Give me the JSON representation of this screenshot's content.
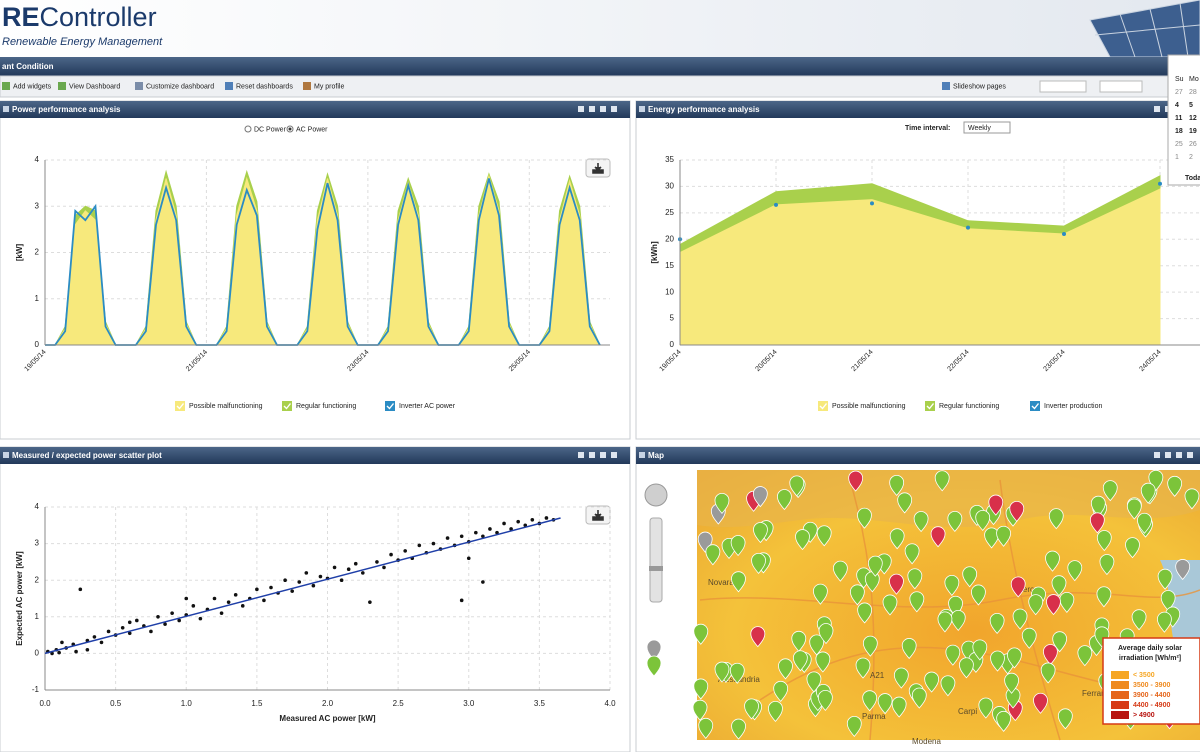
{
  "header": {
    "logo_bold": "RE",
    "logo_rest": "Controller",
    "tagline": "Renewable Energy Management"
  },
  "nav": {
    "title": "ant Condition"
  },
  "toolbar": {
    "items": [
      "Add widgets",
      "View Dashboard",
      "Customize dashboard",
      "Reset dashboards",
      "My profile"
    ],
    "slideshow": "Slideshow pages"
  },
  "calendar": {
    "days": [
      "Su",
      "Mo"
    ],
    "rows": [
      [
        "27",
        "28"
      ],
      [
        "4",
        "5"
      ],
      [
        "11",
        "12"
      ],
      [
        "18",
        "19"
      ],
      [
        "25",
        "26"
      ],
      [
        "1",
        "2"
      ]
    ],
    "today": "Toda"
  },
  "chart_data": [
    {
      "type": "area",
      "title": "Power performance analysis",
      "options": [
        "DC Power",
        "AC Power"
      ],
      "ylabel": "[kW]",
      "grid": true,
      "categories": [
        "19/05/14",
        null,
        null,
        null,
        null,
        null,
        null,
        null,
        null,
        null,
        null,
        null,
        null,
        null,
        null,
        null,
        "21/05/14",
        null,
        null,
        null,
        null,
        null,
        null,
        null,
        null,
        null,
        null,
        null,
        null,
        null,
        null,
        null,
        "23/05/14",
        null,
        null,
        null,
        null,
        null,
        null,
        null,
        null,
        null,
        null,
        null,
        null,
        null,
        null,
        null,
        "25/05/14",
        null,
        null,
        null,
        null,
        null,
        null,
        null
      ],
      "ylim": [
        0,
        4
      ],
      "yticks": [
        0,
        1,
        2,
        3,
        4
      ],
      "series": [
        {
          "name": "Possible malfunctioning",
          "color": "#f7e97c",
          "style": "area",
          "values": [
            0,
            0,
            0.35,
            2.6,
            2.9,
            2.7,
            0.45,
            0,
            0,
            0,
            0.35,
            2.7,
            3.6,
            2.8,
            0.45,
            0,
            0,
            0,
            0.35,
            2.8,
            3.6,
            2.9,
            0.45,
            0,
            0,
            0,
            0.35,
            2.7,
            3.6,
            2.8,
            0.45,
            0,
            0,
            0,
            0.35,
            2.7,
            3.5,
            2.8,
            0.45,
            0,
            0,
            0,
            0.35,
            2.8,
            3.65,
            2.9,
            0.45,
            0,
            0,
            0,
            0.35,
            2.7,
            3.55,
            2.8,
            0.45,
            0
          ]
        },
        {
          "name": "Regular functioning",
          "color": "#a9d04c",
          "style": "area",
          "values": [
            0,
            0,
            0.4,
            2.8,
            3.0,
            2.9,
            0.5,
            0,
            0,
            0,
            0.4,
            2.9,
            3.75,
            3.0,
            0.5,
            0,
            0,
            0,
            0.4,
            3.0,
            3.75,
            3.1,
            0.5,
            0,
            0,
            0,
            0.4,
            2.9,
            3.7,
            3.0,
            0.5,
            0,
            0,
            0,
            0.4,
            2.9,
            3.6,
            3.0,
            0.5,
            0,
            0,
            0,
            0.4,
            3.0,
            3.7,
            3.1,
            0.5,
            0,
            0,
            0,
            0.4,
            2.9,
            3.65,
            3.0,
            0.5,
            0
          ]
        },
        {
          "name": "Inverter AC power",
          "color": "#2b8cc4",
          "style": "line",
          "values": [
            0,
            0,
            0.3,
            2.9,
            2.7,
            3.0,
            0.4,
            0,
            0,
            0,
            0.3,
            2.6,
            3.4,
            2.7,
            0.4,
            0,
            0,
            0,
            0.3,
            2.6,
            3.35,
            2.8,
            0.4,
            0,
            0,
            0,
            0.3,
            2.5,
            3.5,
            2.7,
            0.4,
            0,
            0,
            0,
            0.3,
            2.6,
            3.45,
            2.7,
            0.4,
            0,
            0,
            0,
            0.3,
            2.7,
            3.6,
            2.8,
            0.4,
            0,
            0,
            0,
            0.3,
            2.6,
            3.4,
            2.7,
            0.4,
            0
          ]
        }
      ]
    },
    {
      "type": "area",
      "title": "Energy performance analysis",
      "control_label": "Time interval:",
      "control_value": "Weekly",
      "ylabel": "[kWh]",
      "grid": true,
      "categories": [
        "19/05/14",
        "20/05/14",
        "21/05/14",
        "22/05/14",
        "23/05/14",
        "24/05/14"
      ],
      "ylim": [
        0,
        35
      ],
      "yticks": [
        0,
        5,
        10,
        15,
        20,
        25,
        30,
        35
      ],
      "series": [
        {
          "name": "Possible malfunctioning",
          "color": "#f7e97c",
          "style": "area",
          "values": [
            17.5,
            26.5,
            27.5,
            22,
            21,
            29.5
          ]
        },
        {
          "name": "Regular functioning",
          "color": "#a9d04c",
          "style": "area",
          "values": [
            19,
            29,
            30.5,
            23.5,
            22.5,
            32
          ]
        },
        {
          "name": "Inverter production",
          "color": "#2b8cc4",
          "style": "markers",
          "values": [
            20,
            26.5,
            26.8,
            22.2,
            21,
            30.5
          ]
        }
      ]
    },
    {
      "type": "scatter",
      "title": "Measured / expected power scatter plot",
      "xlabel": "Measured AC power [kW]",
      "ylabel": "Expected AC power [kW]",
      "grid": true,
      "xlim": [
        0,
        4
      ],
      "xticks": [
        {
          "value": 0,
          "label": "0.0"
        },
        {
          "value": 0.5,
          "label": "0.5"
        },
        {
          "value": 1,
          "label": "1.0"
        },
        {
          "value": 1.5,
          "label": "1.5"
        },
        {
          "value": 2,
          "label": "2.0"
        },
        {
          "value": 2.5,
          "label": "2.5"
        },
        {
          "value": 3,
          "label": "3.0"
        },
        {
          "value": 3.5,
          "label": "3.5"
        },
        {
          "value": 4,
          "label": "4.0"
        }
      ],
      "ylim": [
        -1,
        4
      ],
      "yticks": [
        -1,
        0,
        1,
        2,
        3,
        4
      ],
      "color": "#111111",
      "x": [
        0.02,
        0.05,
        0.08,
        0.1,
        0.12,
        0.15,
        0.2,
        0.22,
        0.25,
        0.3,
        0.35,
        0.4,
        0.45,
        0.5,
        0.55,
        0.6,
        0.65,
        0.7,
        0.75,
        0.8,
        0.85,
        0.9,
        0.95,
        1.0,
        1.05,
        1.1,
        1.15,
        1.2,
        1.25,
        1.3,
        1.35,
        1.4,
        1.45,
        1.5,
        1.55,
        1.6,
        1.65,
        1.7,
        1.75,
        1.8,
        1.85,
        1.9,
        1.95,
        2.0,
        2.05,
        2.1,
        2.15,
        2.2,
        2.25,
        2.3,
        2.35,
        2.4,
        2.45,
        2.5,
        2.55,
        2.6,
        2.65,
        2.7,
        2.75,
        2.8,
        2.85,
        2.9,
        2.95,
        3.0,
        3.05,
        3.1,
        3.15,
        3.2,
        3.25,
        3.3,
        3.35,
        3.4,
        3.45,
        3.5,
        3.55,
        3.6,
        3.0,
        3.1,
        2.95,
        1.0,
        0.6,
        0.3
      ],
      "y": [
        0.05,
        0,
        0.1,
        0.02,
        0.3,
        0.15,
        0.25,
        0.05,
        1.75,
        0.35,
        0.45,
        0.3,
        0.6,
        0.5,
        0.7,
        0.55,
        0.9,
        0.75,
        0.6,
        1.0,
        0.8,
        1.1,
        0.9,
        1.05,
        1.3,
        0.95,
        1.2,
        1.5,
        1.1,
        1.4,
        1.6,
        1.3,
        1.5,
        1.75,
        1.45,
        1.8,
        1.65,
        2.0,
        1.7,
        1.95,
        2.2,
        1.85,
        2.1,
        2.05,
        2.35,
        2.0,
        2.3,
        2.45,
        2.2,
        1.4,
        2.5,
        2.35,
        2.7,
        2.55,
        2.8,
        2.6,
        2.95,
        2.75,
        3.0,
        2.85,
        3.15,
        2.95,
        3.2,
        3.05,
        3.3,
        3.2,
        3.4,
        3.3,
        3.55,
        3.4,
        3.6,
        3.5,
        3.65,
        3.55,
        3.7,
        3.65,
        2.6,
        1.95,
        1.45,
        1.5,
        0.85,
        0.1
      ],
      "trend": {
        "color": "#1f3fa8",
        "x": [
          0,
          3.65
        ],
        "y": [
          0,
          3.7
        ]
      }
    }
  ],
  "map": {
    "title": "Map",
    "cities": [
      "Novara",
      "Verona",
      "Alessandria",
      "Parma",
      "Modena",
      "Ferrara",
      "Carpi",
      "A21"
    ],
    "legend": {
      "title_lines": [
        "Average daily solar",
        "irradiation [Wh/m²]"
      ],
      "items": [
        {
          "label": "< 3500",
          "color": "#f6a623"
        },
        {
          "label": "3500 - 3900",
          "color": "#ef8a1e"
        },
        {
          "label": "3900 - 4400",
          "color": "#e5651a"
        },
        {
          "label": "4400 - 4900",
          "color": "#d63a16"
        },
        {
          "label": "> 4900",
          "color": "#b8140f"
        }
      ]
    }
  }
}
